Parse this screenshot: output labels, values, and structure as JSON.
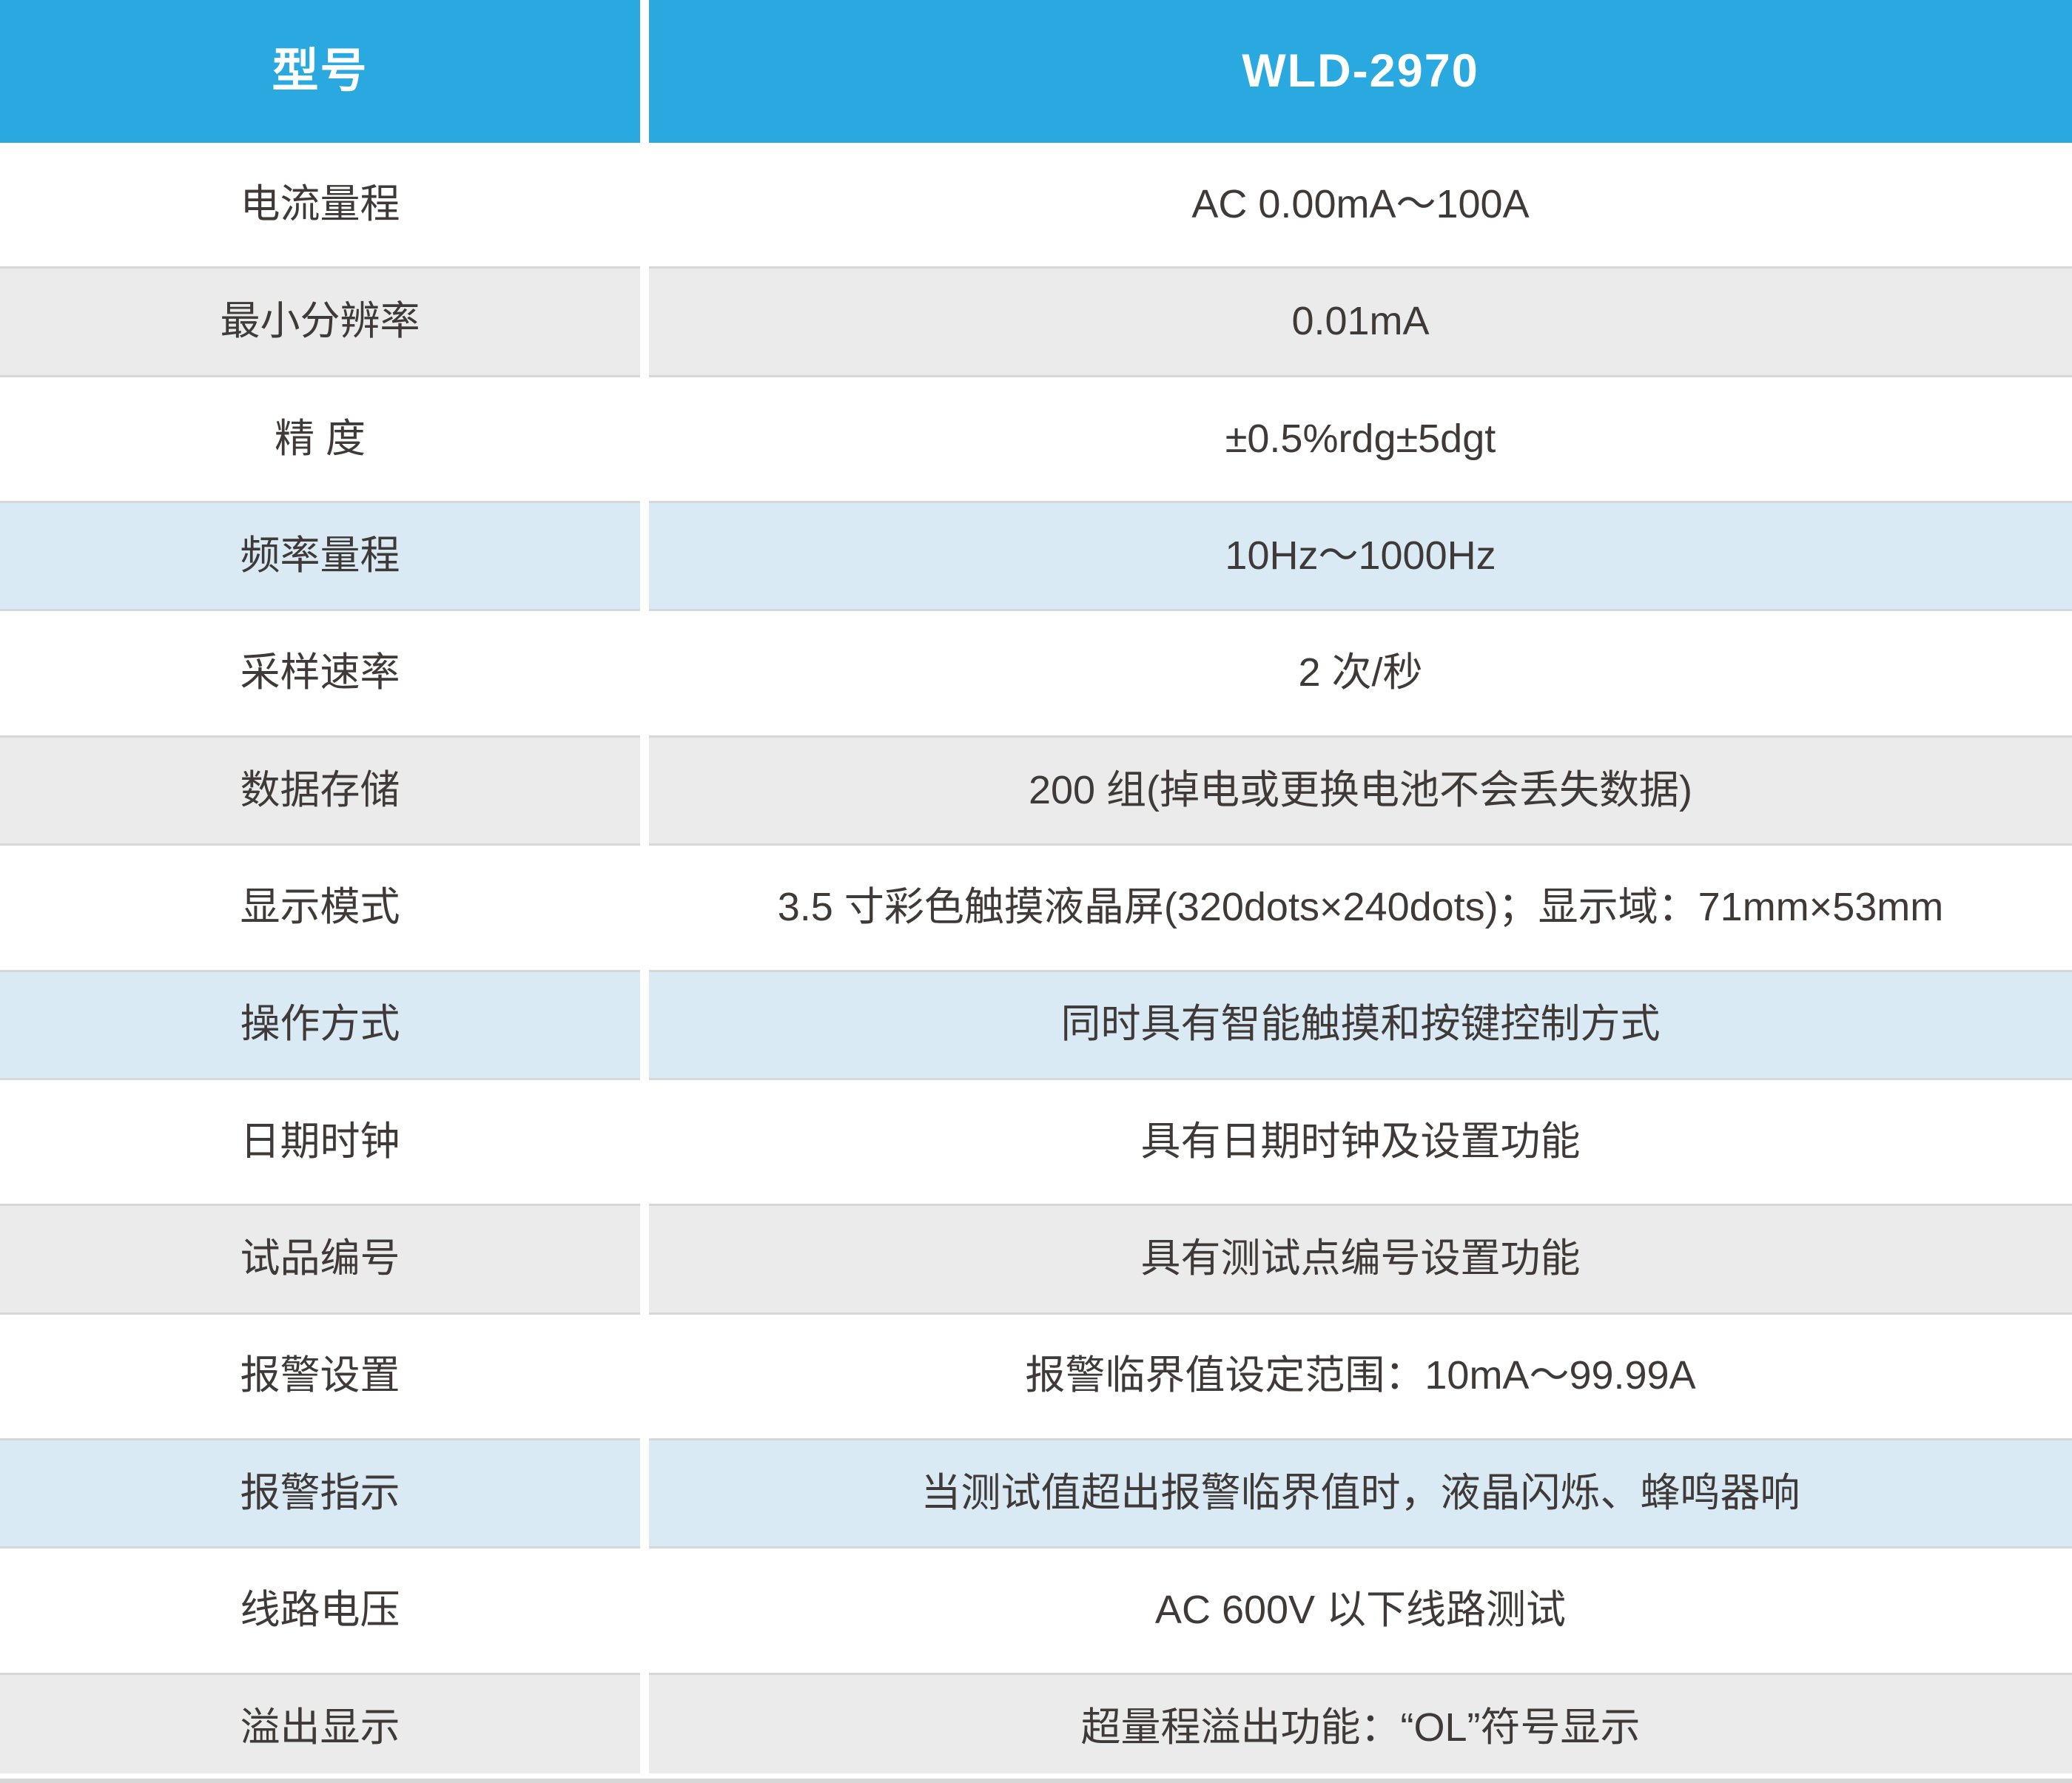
{
  "table": {
    "header": {
      "model_label": "型号",
      "model_value": "WLD-2970"
    },
    "rows": [
      {
        "label": "电流量程",
        "value": "AC 0.00mA～100A",
        "variant": "white"
      },
      {
        "label": "最小分辨率",
        "value": "0.01mA",
        "variant": "gray"
      },
      {
        "label": "精 度",
        "value": "±0.5%rdg±5dgt",
        "variant": "white"
      },
      {
        "label": "频率量程",
        "value": "10Hz～1000Hz",
        "variant": "blue"
      },
      {
        "label": "采样速率",
        "value": "2 次/秒",
        "variant": "white"
      },
      {
        "label": "数据存储",
        "value": "200 组(掉电或更换电池不会丢失数据)",
        "variant": "gray"
      },
      {
        "label": "显示模式",
        "value": "3.5 寸彩色触摸液晶屏(320dots×240dots)；显示域：71mm×53mm",
        "variant": "white"
      },
      {
        "label": "操作方式",
        "value": "同时具有智能触摸和按键控制方式",
        "variant": "blue"
      },
      {
        "label": "日期时钟",
        "value": "具有日期时钟及设置功能",
        "variant": "white"
      },
      {
        "label": "试品编号",
        "value": "具有测试点编号设置功能",
        "variant": "gray"
      },
      {
        "label": "报警设置",
        "value": "报警临界值设定范围：10mA～99.99A",
        "variant": "white"
      },
      {
        "label": "报警指示",
        "value": "当测试值超出报警临界值时，液晶闪烁、蜂鸣器响",
        "variant": "blue"
      },
      {
        "label": "线路电压",
        "value": "AC 600V 以下线路测试",
        "variant": "white"
      },
      {
        "label": "溢出显示",
        "value": "超量程溢出功能：“OL”符号显示",
        "variant": "gray"
      }
    ],
    "colors": {
      "header_bg": "#29a9e0",
      "header_text": "#ffffff",
      "row_white": "#ffffff",
      "row_gray": "#ebebeb",
      "row_blue": "#d9eaf5",
      "divider": "#d7d7d7",
      "text": "#3f3a38"
    }
  }
}
